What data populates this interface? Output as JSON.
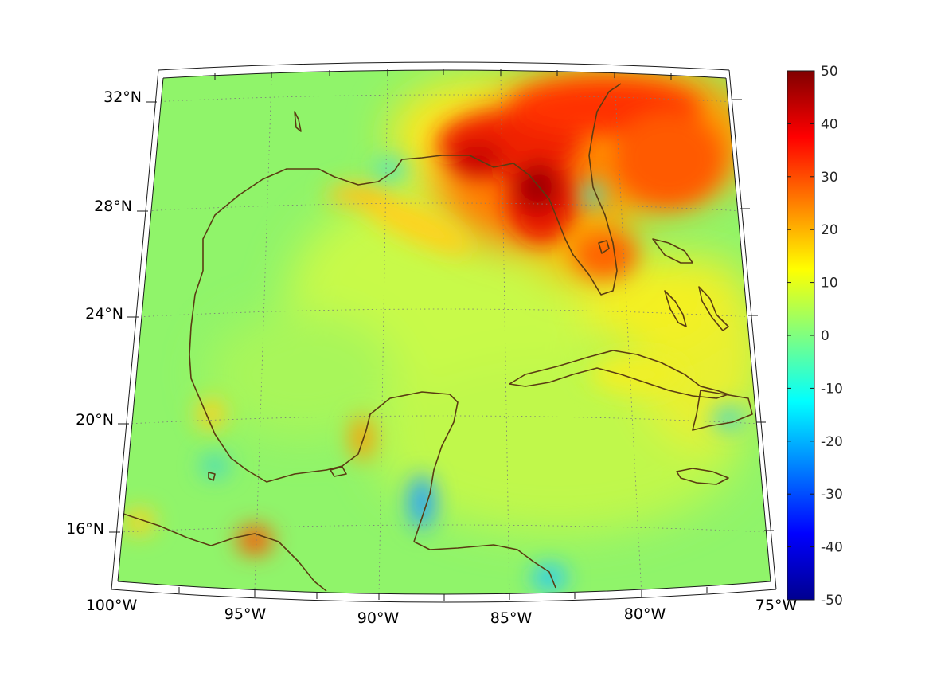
{
  "map": {
    "projection": "conic",
    "extent": {
      "lon": [
        -100,
        -75
      ],
      "lat": [
        14,
        33
      ]
    },
    "coastline_color": "#5a3c12",
    "graticule": {
      "style": "dotted",
      "lon_step": 5,
      "lat_step": 4
    },
    "lon_labels": [
      "100°W",
      "95°W",
      "90°W",
      "85°W",
      "80°W",
      "75°W"
    ],
    "lat_labels": [
      "32°N",
      "28°N",
      "24°N",
      "20°N",
      "16°N"
    ],
    "colormap": "jet",
    "field_highlights": [
      {
        "region": "Florida Panhandle / Big Bend",
        "value": 50
      },
      {
        "region": "Southeast US / Atlantic coast",
        "value": 35
      },
      {
        "region": "Bay of Campeche coast",
        "value": 25
      },
      {
        "region": "Gulf of Honduras",
        "value": -15
      }
    ]
  },
  "colorbar": {
    "min": -50,
    "max": 50,
    "ticks": [
      "50",
      "40",
      "30",
      "20",
      "10",
      "0",
      "-10",
      "-20",
      "-30",
      "-40",
      "-50"
    ],
    "colors": [
      "#800000",
      "#ff0000",
      "#ffff00",
      "#00ffff",
      "#0000ff",
      "#00008f"
    ]
  }
}
